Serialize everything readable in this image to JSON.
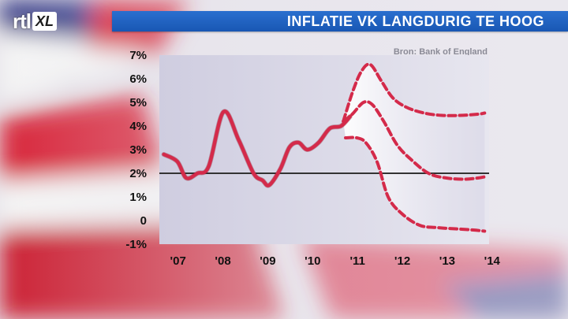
{
  "header": {
    "logo_rtl": "rtl",
    "logo_xl": "XL",
    "title": "INFLATIE VK LANGDURIG TE HOOG"
  },
  "chart_data": {
    "type": "line",
    "title": "INFLATIE VK LANGDURIG TE HOOG",
    "source": "Bron: Bank of England",
    "xlabel": "",
    "ylabel": "",
    "ylim": [
      -1,
      7
    ],
    "xlim": [
      2006.9,
      2014.25
    ],
    "x_ticks": [
      2007,
      2008,
      2009,
      2010,
      2011,
      2012,
      2013,
      2014
    ],
    "x_tick_labels": [
      "'07",
      "'08",
      "'09",
      "'10",
      "'11",
      "'12",
      "'13",
      "'14"
    ],
    "y_ticks": [
      7,
      6,
      5,
      4,
      3,
      2,
      1,
      0,
      -1
    ],
    "y_tick_labels": [
      "7%",
      "6%",
      "5%",
      "4%",
      "3%",
      "2%",
      "1%",
      "0",
      "-1%"
    ],
    "target_line": 2,
    "grid": false,
    "colors": {
      "line": "#d42a4a",
      "target": "#333333",
      "plot_bg": "#dcdbe8",
      "band": "#ffffff",
      "title_bar": "#1f5fbf"
    },
    "series": [
      {
        "style": "solid",
        "x": [
          2007.0,
          2007.3,
          2007.5,
          2007.75,
          2008.0,
          2008.33,
          2008.67,
          2009.0,
          2009.2,
          2009.35,
          2009.6,
          2009.8,
          2010.0,
          2010.2,
          2010.45,
          2010.7,
          2010.95,
          2011.15
        ],
        "y": [
          2.8,
          2.5,
          1.8,
          2.0,
          2.3,
          4.6,
          3.4,
          2.0,
          1.7,
          1.5,
          2.2,
          3.1,
          3.3,
          3.0,
          3.3,
          3.9,
          4.0,
          4.4
        ]
      },
      {
        "style": "dashed",
        "name": "upper",
        "x": [
          2011.0,
          2011.2,
          2011.4,
          2011.6,
          2011.85,
          2012.1,
          2012.4,
          2012.8,
          2013.2,
          2013.6,
          2014.0,
          2014.15
        ],
        "y": [
          4.2,
          5.4,
          6.3,
          6.6,
          5.9,
          5.2,
          4.8,
          4.55,
          4.45,
          4.45,
          4.5,
          4.55
        ]
      },
      {
        "style": "dashed",
        "name": "central",
        "x": [
          2011.0,
          2011.2,
          2011.45,
          2011.65,
          2011.9,
          2012.2,
          2012.5,
          2012.9,
          2013.3,
          2013.7,
          2014.0,
          2014.15
        ],
        "y": [
          4.2,
          4.5,
          5.0,
          4.9,
          4.2,
          3.2,
          2.6,
          2.0,
          1.8,
          1.75,
          1.8,
          1.85
        ]
      },
      {
        "style": "dashed",
        "name": "lower",
        "x": [
          2011.05,
          2011.3,
          2011.5,
          2011.75,
          2012.0,
          2012.3,
          2012.7,
          2013.1,
          2013.5,
          2013.9,
          2014.15
        ],
        "y": [
          3.5,
          3.5,
          3.3,
          2.5,
          1.0,
          0.3,
          -0.2,
          -0.3,
          -0.35,
          -0.4,
          -0.45
        ]
      }
    ]
  }
}
